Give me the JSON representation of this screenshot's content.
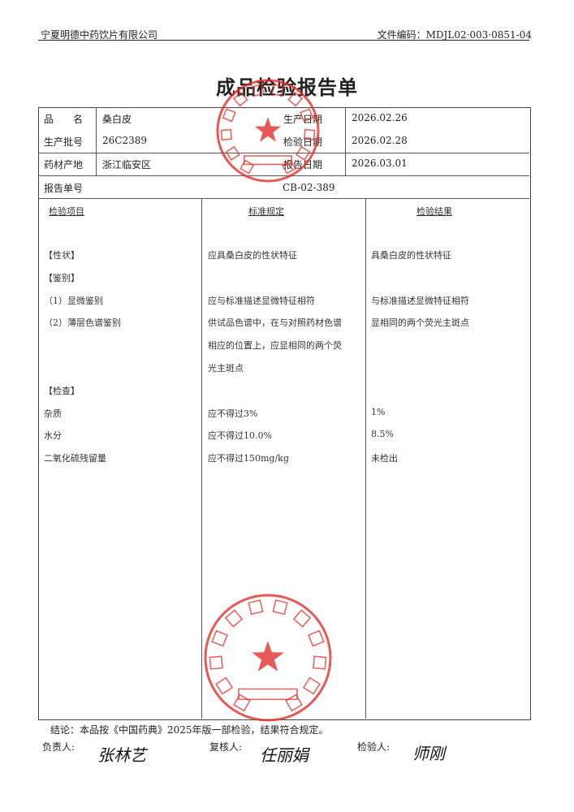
{
  "header": {
    "company": "宁夏明德中药饮片有限公司",
    "doc_code": "文件编码：MDJL02·003·0851-04"
  },
  "title": "成品检验报告单",
  "info": {
    "name_label": "品　　名",
    "name": "桑白皮",
    "prod_date_label": "生产日期",
    "prod_date": "2026.02.26",
    "batch_label": "生产批号",
    "batch": "26C2389",
    "test_date_label": "检验日期",
    "test_date": "2026.02.28",
    "origin_label": "药材产地",
    "origin": "浙江临安区",
    "report_date_label": "报告日期",
    "report_date": "2026.03.01",
    "report_no_label": "报告单号",
    "report_no": "CB-02-389"
  },
  "columns": {
    "item": "检验项目",
    "standard": "标准规定",
    "result": "检验结果"
  },
  "rows": [
    {
      "item": "【性状】",
      "standard": "应具桑白皮的性状特征",
      "result": "具桑白皮的性状特征"
    },
    {
      "item": "【鉴别】",
      "standard": "",
      "result": ""
    },
    {
      "item": "（1）显微鉴别",
      "standard": "应与标准描述显微特征相符",
      "result": "与标准描述显微特征相符"
    },
    {
      "item": "（2）薄层色谱鉴别",
      "standard": "供试品色谱中，在与对照药材色谱",
      "result": "显相同的两个荧光主斑点"
    },
    {
      "item": "",
      "standard": "相应的位置上，应显相同的两个荧",
      "result": ""
    },
    {
      "item": "",
      "standard": "光主斑点",
      "result": ""
    },
    {
      "item": "【检查】",
      "standard": "",
      "result": ""
    },
    {
      "item": "杂质",
      "standard": "应不得过3%",
      "result": "1%"
    },
    {
      "item": "水分",
      "standard": "应不得过10.0%",
      "result": "8.5%"
    },
    {
      "item": "二氧化硫残留量",
      "standard": "应不得过150mg/kg",
      "result": "未检出"
    }
  ],
  "conclusion": "结论：本品按《中国药典》2025年版一部检验，结果符合规定。",
  "signatures": {
    "responsible_label": "负责人:",
    "reviewer_label": "复核人:",
    "inspector_label": "检验人:",
    "responsible": "张林艺",
    "reviewer": "任丽娟",
    "inspector": "师刚"
  },
  "stamps": {
    "top": {
      "ring": "宁夏明德中药饮片有限公司",
      "bottom": "质量部"
    },
    "bottom": {
      "ring": "宁夏明德中药饮片有限公司",
      "bottom": "质检专用章"
    }
  },
  "colors": {
    "stamp": "#e0302c"
  }
}
